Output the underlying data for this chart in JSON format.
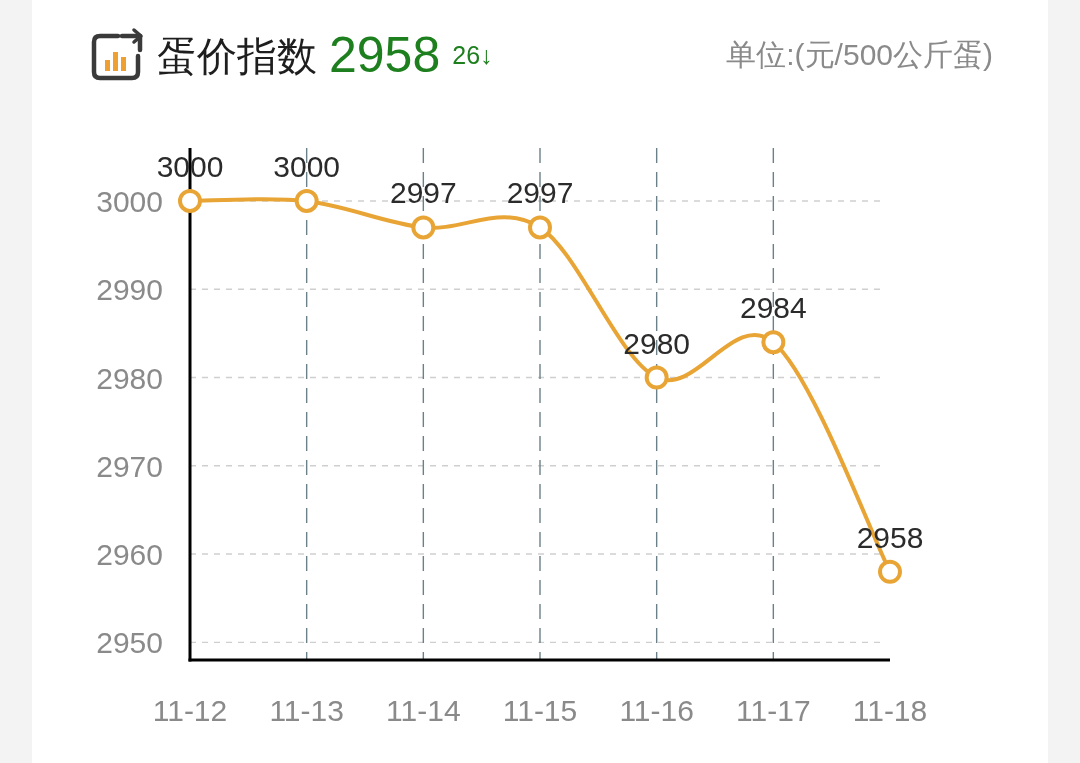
{
  "chart_data": {
    "type": "line",
    "title": "蛋价指数",
    "annotations": [
      "2958",
      "26↓"
    ],
    "ylabel": "单位:(元/500公斤蛋)",
    "categories": [
      "11-12",
      "11-13",
      "11-14",
      "11-15",
      "11-16",
      "11-17",
      "11-18"
    ],
    "values": [
      3000,
      3000,
      2997,
      2997,
      2980,
      2984,
      2958
    ],
    "color": "#e8a535",
    "ylim": [
      2948,
      3006
    ],
    "yticks": [
      2950,
      2960,
      2970,
      2980,
      2990,
      3000
    ],
    "grid": true,
    "marker": "circle",
    "line_style": "solid",
    "data_labels": true
  }
}
